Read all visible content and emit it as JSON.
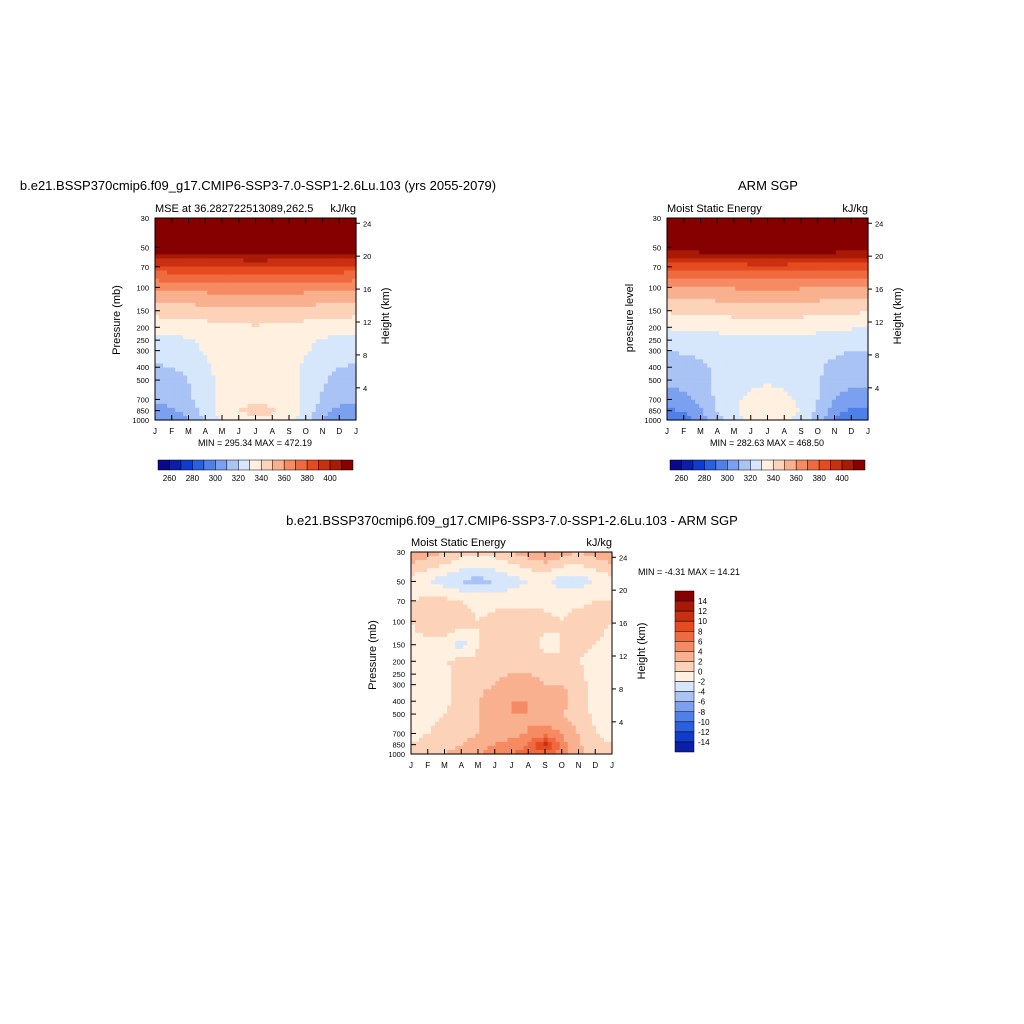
{
  "colormap": [
    "#08088c",
    "#0a1fa8",
    "#0f3ccc",
    "#2a5fe0",
    "#4f80ea",
    "#7ba0f0",
    "#a9c3f5",
    "#d6e6fb",
    "#fff0e0",
    "#fcd2b8",
    "#f9b08e",
    "#f68a62",
    "#f06a40",
    "#e54a20",
    "#c9300f",
    "#a81a06",
    "#870000"
  ],
  "months": [
    "J",
    "F",
    "M",
    "A",
    "M",
    "J",
    "J",
    "A",
    "S",
    "O",
    "N",
    "D",
    "J"
  ],
  "pressure_ticks": [
    "30",
    "50",
    "70",
    "100",
    "150",
    "200",
    "250",
    "300",
    "400",
    "500",
    "700",
    "850",
    "1000"
  ],
  "height_ticks": [
    "24",
    "20",
    "16",
    "12",
    "8",
    "4"
  ],
  "panels": [
    {
      "title": "b.e21.BSSP370cmip6.f09_g17.CMIP6-SSP3-7.0-SSP1-2.6Lu.103 (yrs 2055-2079)",
      "left_string": "MSE at 36.282722513089,262.5",
      "right_string": "kJ/kg",
      "ylabel": "Pressure (mb)",
      "ylabel_right": "Height (km)",
      "stats": "MIN = 295.34 MAX = 472.19",
      "colorbar_labels": [
        "260",
        "280",
        "300",
        "320",
        "340",
        "360",
        "380",
        "400"
      ]
    },
    {
      "title": "ARM SGP",
      "left_string": "Moist Static Energy",
      "right_string": "kJ/kg",
      "ylabel": "pressure level",
      "ylabel_right": "Height (km)",
      "stats": "MIN = 282.63 MAX = 468.50",
      "colorbar_labels": [
        "260",
        "280",
        "300",
        "320",
        "340",
        "360",
        "380",
        "400"
      ]
    },
    {
      "title": "b.e21.BSSP370cmip6.f09_g17.CMIP6-SSP3-7.0-SSP1-2.6Lu.103 - ARM SGP",
      "left_string": "Moist Static Energy",
      "right_string": "kJ/kg",
      "ylabel": "Pressure (mb)",
      "ylabel_right": "Height (km)",
      "stats": "MIN =  -4.31 MAX =  14.21",
      "colorbar_labels": [
        "14",
        "12",
        "10",
        "8",
        "6",
        "4",
        "2",
        "0",
        "-2",
        "-4",
        "-6",
        "-8",
        "-10",
        "-12",
        "-14"
      ]
    }
  ],
  "chart_data": [
    {
      "type": "heatmap",
      "title": "b.e21.BSSP370cmip6.f09_g17.CMIP6-SSP3-7.0-SSP1-2.6Lu.103 (yrs 2055-2079)",
      "variable": "MSE at 36.282722513089,262.5",
      "units": "kJ/kg",
      "xlabel": "",
      "ylabel": "Pressure (mb)",
      "x": [
        "J",
        "F",
        "M",
        "A",
        "M",
        "J",
        "J",
        "A",
        "S",
        "O",
        "N",
        "D",
        "J"
      ],
      "y_pressure": [
        1000,
        850,
        700,
        500,
        400,
        300,
        250,
        200,
        150,
        100,
        70,
        50,
        30
      ],
      "y_axis": "log, inverted",
      "levels": [
        260,
        270,
        280,
        290,
        300,
        310,
        320,
        330,
        340,
        350,
        360,
        370,
        380,
        390,
        400,
        410
      ],
      "min": 295.34,
      "max": 472.19,
      "values": [
        [
          300,
          302,
          310,
          322,
          332,
          338,
          339,
          338,
          334,
          324,
          310,
          301,
          300
        ],
        [
          306,
          308,
          314,
          324,
          334,
          340,
          342,
          341,
          336,
          327,
          315,
          307,
          306
        ],
        [
          312,
          314,
          318,
          326,
          334,
          338,
          339,
          338,
          335,
          328,
          319,
          313,
          312
        ],
        [
          316,
          317,
          320,
          327,
          333,
          336,
          337,
          336,
          334,
          328,
          321,
          317,
          316
        ],
        [
          319,
          320,
          322,
          328,
          333,
          335,
          336,
          335,
          333,
          328,
          322,
          320,
          319
        ],
        [
          324,
          325,
          327,
          331,
          334,
          335,
          336,
          335,
          334,
          331,
          327,
          325,
          324
        ],
        [
          327,
          328,
          329,
          332,
          334,
          335,
          336,
          335,
          334,
          332,
          329,
          328,
          327
        ],
        [
          333,
          334,
          335,
          336,
          337,
          338,
          339,
          338,
          337,
          336,
          335,
          334,
          333
        ],
        [
          344,
          345,
          345,
          346,
          347,
          348,
          348,
          348,
          347,
          346,
          345,
          345,
          344
        ],
        [
          362,
          363,
          363,
          364,
          365,
          366,
          366,
          366,
          365,
          364,
          363,
          363,
          362
        ],
        [
          386,
          387,
          387,
          388,
          388,
          389,
          389,
          389,
          388,
          388,
          387,
          387,
          386
        ],
        [
          420,
          420,
          421,
          421,
          422,
          422,
          423,
          422,
          422,
          421,
          421,
          420,
          420
        ],
        [
          455,
          455,
          456,
          456,
          457,
          457,
          458,
          457,
          457,
          456,
          456,
          455,
          455
        ]
      ]
    },
    {
      "type": "heatmap",
      "title": "ARM SGP",
      "variable": "Moist Static Energy",
      "units": "kJ/kg",
      "xlabel": "",
      "ylabel": "pressure level",
      "x": [
        "J",
        "F",
        "M",
        "A",
        "M",
        "J",
        "J",
        "A",
        "S",
        "O",
        "N",
        "D",
        "J"
      ],
      "y_pressure": [
        1000,
        850,
        700,
        500,
        400,
        300,
        250,
        200,
        150,
        100,
        70,
        50,
        30
      ],
      "y_axis": "log, inverted",
      "levels": [
        260,
        270,
        280,
        290,
        300,
        310,
        320,
        330,
        340,
        350,
        360,
        370,
        380,
        390,
        400,
        410
      ],
      "min": 282.63,
      "max": 468.5,
      "values": [
        [
          290,
          294,
          303,
          316,
          327,
          333,
          336,
          333,
          326,
          314,
          300,
          291,
          290
        ],
        [
          298,
          301,
          309,
          320,
          329,
          334,
          337,
          335,
          329,
          318,
          305,
          298,
          298
        ],
        [
          306,
          308,
          313,
          322,
          328,
          332,
          333,
          332,
          328,
          320,
          310,
          306,
          306
        ],
        [
          312,
          313,
          316,
          322,
          326,
          328,
          329,
          328,
          326,
          321,
          315,
          312,
          312
        ],
        [
          315,
          316,
          318,
          322,
          325,
          327,
          327,
          327,
          325,
          322,
          317,
          315,
          315
        ],
        [
          320,
          321,
          322,
          324,
          326,
          327,
          328,
          327,
          326,
          324,
          322,
          320,
          320
        ],
        [
          323,
          324,
          325,
          326,
          327,
          328,
          328,
          328,
          327,
          326,
          325,
          324,
          323
        ],
        [
          331,
          332,
          332,
          333,
          334,
          335,
          336,
          335,
          334,
          333,
          332,
          331,
          331
        ],
        [
          341,
          342,
          342,
          343,
          344,
          344,
          345,
          344,
          344,
          343,
          342,
          342,
          341
        ],
        [
          358,
          359,
          359,
          360,
          361,
          362,
          362,
          362,
          361,
          360,
          359,
          359,
          358
        ],
        [
          383,
          384,
          384,
          385,
          385,
          386,
          386,
          386,
          385,
          385,
          384,
          384,
          383
        ],
        [
          418,
          418,
          419,
          419,
          420,
          420,
          421,
          420,
          420,
          419,
          419,
          418,
          418
        ],
        [
          451,
          451,
          452,
          452,
          453,
          453,
          454,
          453,
          453,
          452,
          452,
          451,
          451
        ]
      ]
    },
    {
      "type": "heatmap",
      "title": "b.e21.BSSP370cmip6.f09_g17.CMIP6-SSP3-7.0-SSP1-2.6Lu.103 - ARM SGP",
      "variable": "Moist Static Energy",
      "units": "kJ/kg",
      "xlabel": "",
      "ylabel": "Pressure (mb)",
      "x": [
        "J",
        "F",
        "M",
        "A",
        "M",
        "J",
        "J",
        "A",
        "S",
        "O",
        "N",
        "D",
        "J"
      ],
      "y_pressure": [
        1000,
        850,
        700,
        500,
        400,
        300,
        250,
        200,
        150,
        100,
        70,
        50,
        30
      ],
      "y_axis": "log, inverted",
      "levels": [
        -14,
        -12,
        -10,
        -8,
        -6,
        -4,
        -2,
        0,
        2,
        4,
        6,
        8,
        10,
        12,
        14
      ],
      "min": -4.31,
      "max": 14.21,
      "values": [
        [
          2.5,
          3,
          4,
          5,
          6,
          7,
          8,
          9,
          9,
          7,
          5,
          3,
          2.5
        ],
        [
          2,
          2.5,
          3,
          4,
          5,
          6,
          7,
          8,
          13,
          7,
          4,
          2.5,
          2
        ],
        [
          1.5,
          2,
          2.5,
          3,
          4,
          5,
          5,
          6,
          7,
          6,
          4,
          2,
          1.5
        ],
        [
          1,
          1.5,
          2,
          3,
          4,
          5,
          6,
          6,
          5,
          4,
          3,
          1.5,
          1
        ],
        [
          0.5,
          1,
          1.5,
          3,
          4,
          5,
          6,
          6,
          5,
          5,
          3,
          1,
          0.5
        ],
        [
          0.5,
          1,
          1.5,
          3,
          3.5,
          4,
          5,
          5,
          4,
          4,
          3,
          1,
          0.5
        ],
        [
          0.5,
          1,
          1.5,
          2.5,
          3,
          3.5,
          4,
          4,
          3.5,
          3,
          2.5,
          1,
          0.5
        ],
        [
          1,
          1.5,
          2,
          2.5,
          2.5,
          3,
          3,
          3,
          2.5,
          2,
          2,
          1.5,
          1
        ],
        [
          1.5,
          1.5,
          1.5,
          -1,
          2,
          2.5,
          3,
          2.5,
          1.5,
          2,
          2.5,
          2,
          1.5
        ],
        [
          2,
          3,
          3.5,
          3,
          2,
          2.5,
          3,
          3,
          2.5,
          2,
          3,
          2.5,
          2
        ],
        [
          2,
          2.5,
          2.5,
          2,
          1.5,
          1.5,
          1.5,
          1.5,
          1.5,
          1.5,
          1.5,
          2,
          2
        ],
        [
          1,
          0,
          -1,
          -2,
          -3,
          -2,
          -1,
          0,
          0.5,
          -1,
          -1,
          0,
          1
        ],
        [
          6,
          5,
          4,
          3,
          3,
          3,
          4,
          5,
          6,
          5,
          4,
          5,
          6
        ]
      ]
    }
  ]
}
